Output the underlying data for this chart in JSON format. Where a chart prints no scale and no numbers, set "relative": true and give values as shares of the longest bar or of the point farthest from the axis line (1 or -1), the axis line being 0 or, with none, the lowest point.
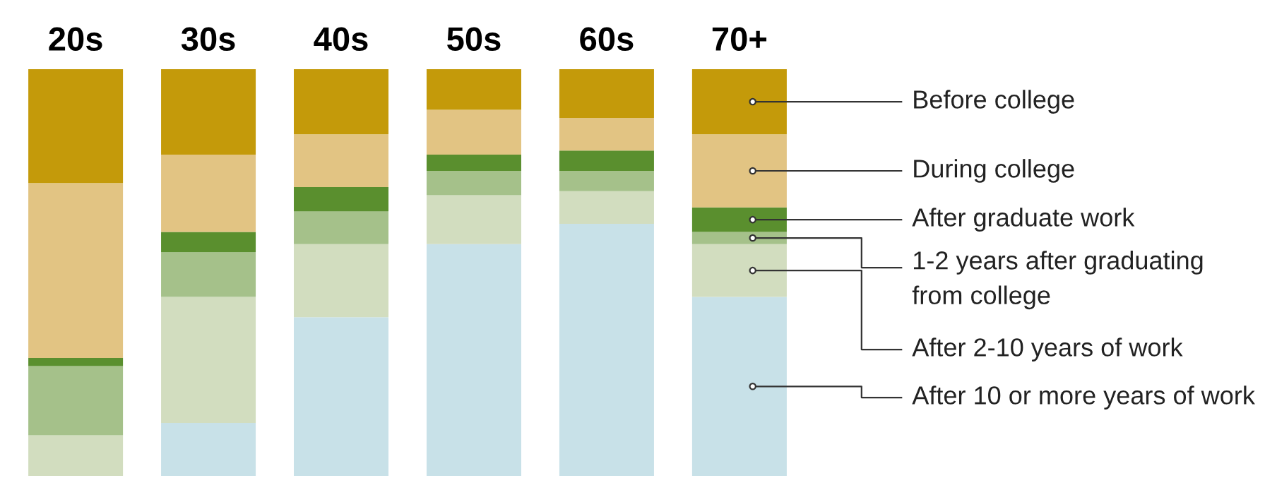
{
  "chart_data": {
    "type": "bar",
    "stacked": true,
    "relative": true,
    "legend": "right",
    "grid": false,
    "categories": [
      "20s",
      "30s",
      "40s",
      "50s",
      "60s",
      "70+"
    ],
    "series": [
      {
        "name": "After 10 or more years of work",
        "color": "#c8e1e8",
        "values": [
          0,
          0.13,
          0.39,
          0.57,
          0.62,
          0.44
        ]
      },
      {
        "name": "After 2-10 years of work",
        "color": "#d2ddbf",
        "values": [
          0.1,
          0.31,
          0.18,
          0.12,
          0.08,
          0.13
        ]
      },
      {
        "name": "1-2 years after graduating\nfrom college",
        "color": "#a5c18a",
        "values": [
          0.17,
          0.11,
          0.08,
          0.06,
          0.05,
          0.03
        ]
      },
      {
        "name": "After graduate work",
        "color": "#5a8f2e",
        "values": [
          0.02,
          0.05,
          0.06,
          0.04,
          0.05,
          0.06
        ]
      },
      {
        "name": "During college",
        "color": "#e2c483",
        "values": [
          0.43,
          0.19,
          0.13,
          0.11,
          0.08,
          0.18
        ]
      },
      {
        "name": "Before college",
        "color": "#c49a0a",
        "values": [
          0.28,
          0.21,
          0.16,
          0.1,
          0.12,
          0.16
        ]
      }
    ]
  }
}
